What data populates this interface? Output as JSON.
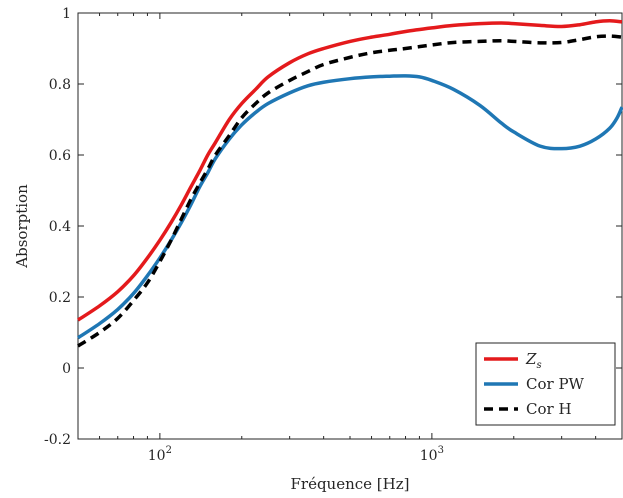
{
  "chart_data": {
    "type": "line",
    "xscale": "log",
    "xlim": [
      50,
      5000
    ],
    "ylim": [
      -0.2,
      1
    ],
    "xlabel": "Fréquence [Hz]",
    "ylabel": "Absorption",
    "yticks": [
      -0.2,
      0,
      0.2,
      0.4,
      0.6,
      0.8,
      1
    ],
    "ytick_labels": [
      "-0.2",
      "0",
      "0.2",
      "0.4",
      "0.6",
      "0.8",
      "1"
    ],
    "xticks": [
      100,
      1000
    ],
    "xtick_labels": [
      {
        "base": "10",
        "exp": "2"
      },
      {
        "base": "10",
        "exp": "3"
      }
    ],
    "grid": false,
    "legend_position": "bottom-right",
    "series": [
      {
        "name_main": "Z",
        "name_sub": "s",
        "color": "#e41a1c",
        "style": "solid",
        "x": [
          50,
          60,
          70,
          80,
          90,
          100,
          110,
          120,
          130,
          140,
          150,
          160,
          180,
          200,
          225,
          250,
          300,
          350,
          400,
          500,
          600,
          700,
          800,
          1000,
          1200,
          1500,
          1800,
          2000,
          2500,
          3000,
          3500,
          4000,
          4500,
          5000
        ],
        "y": [
          0.135,
          0.175,
          0.215,
          0.26,
          0.31,
          0.36,
          0.41,
          0.46,
          0.51,
          0.555,
          0.6,
          0.635,
          0.7,
          0.745,
          0.785,
          0.82,
          0.86,
          0.885,
          0.9,
          0.92,
          0.932,
          0.94,
          0.948,
          0.958,
          0.965,
          0.97,
          0.972,
          0.97,
          0.965,
          0.962,
          0.967,
          0.975,
          0.978,
          0.975
        ]
      },
      {
        "name_main": "Cor PW",
        "name_sub": "",
        "color": "#1f77b4",
        "style": "solid",
        "x": [
          50,
          60,
          70,
          80,
          90,
          100,
          110,
          120,
          130,
          140,
          150,
          160,
          180,
          200,
          225,
          250,
          300,
          350,
          400,
          500,
          600,
          700,
          800,
          900,
          1000,
          1200,
          1500,
          1800,
          2000,
          2500,
          3000,
          3500,
          4000,
          4500,
          4800,
          5000
        ],
        "y": [
          0.085,
          0.125,
          0.165,
          0.21,
          0.26,
          0.31,
          0.36,
          0.41,
          0.46,
          0.51,
          0.55,
          0.59,
          0.645,
          0.685,
          0.72,
          0.745,
          0.775,
          0.795,
          0.805,
          0.815,
          0.82,
          0.822,
          0.823,
          0.82,
          0.81,
          0.785,
          0.74,
          0.69,
          0.665,
          0.625,
          0.618,
          0.625,
          0.645,
          0.675,
          0.705,
          0.735
        ]
      },
      {
        "name_main": "Cor H",
        "name_sub": "",
        "color": "#000000",
        "style": "dashed",
        "x": [
          50,
          60,
          70,
          80,
          90,
          100,
          110,
          120,
          130,
          140,
          150,
          160,
          180,
          200,
          225,
          250,
          300,
          350,
          400,
          500,
          600,
          700,
          800,
          1000,
          1200,
          1500,
          1800,
          2000,
          2500,
          3000,
          3500,
          4000,
          4500,
          5000
        ],
        "y": [
          0.062,
          0.1,
          0.14,
          0.19,
          0.24,
          0.3,
          0.36,
          0.42,
          0.475,
          0.52,
          0.56,
          0.6,
          0.655,
          0.705,
          0.745,
          0.775,
          0.81,
          0.835,
          0.855,
          0.875,
          0.888,
          0.895,
          0.9,
          0.91,
          0.917,
          0.92,
          0.922,
          0.92,
          0.916,
          0.917,
          0.925,
          0.933,
          0.935,
          0.932
        ]
      }
    ]
  }
}
